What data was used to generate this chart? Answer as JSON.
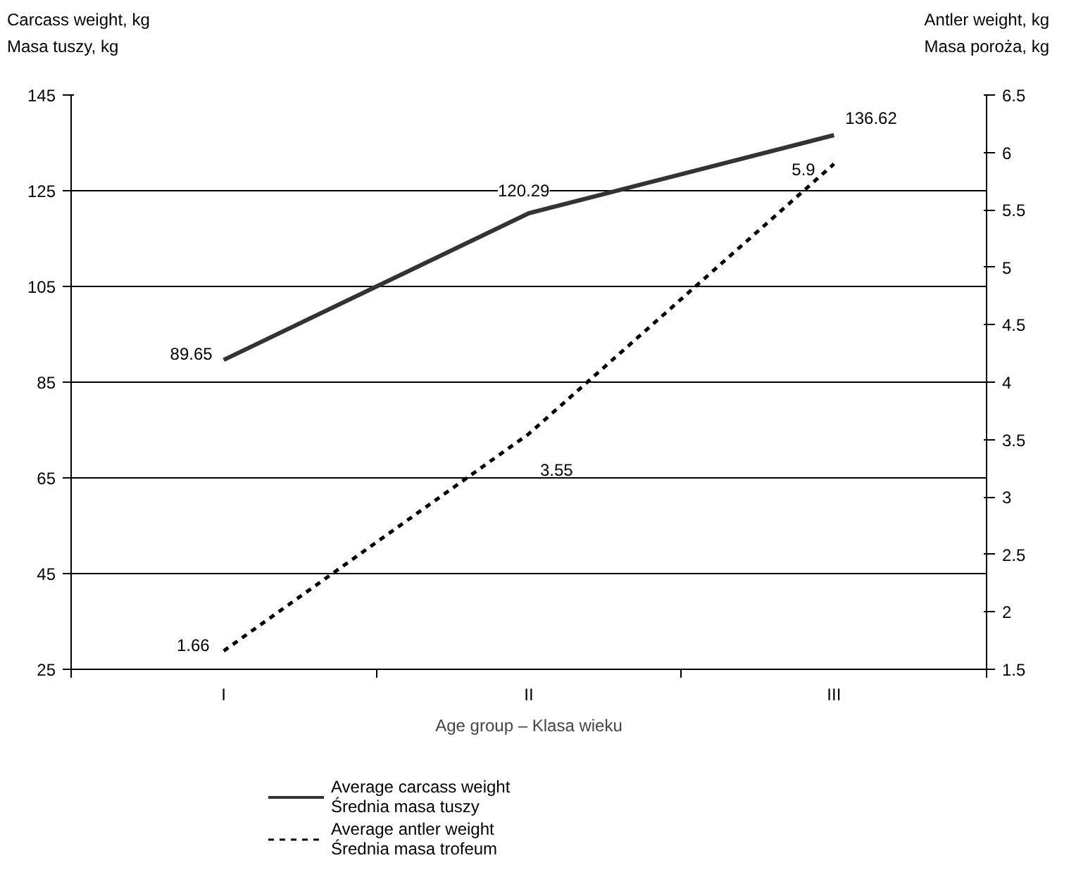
{
  "chart_data": {
    "type": "line",
    "categories": [
      "I",
      "II",
      "III"
    ],
    "xlabel": "Age group – Klasa wieku",
    "ylabel": "Carcass weight, kg\nMasa tuszy, kg",
    "y2label": "Antler weight, kg\nMasa poroża, kg",
    "ylim": [
      25,
      145
    ],
    "yticks": [
      25,
      45,
      65,
      85,
      105,
      125,
      145
    ],
    "y2lim": [
      1.5,
      6.5
    ],
    "y2ticks": [
      1.5,
      2,
      2.5,
      3,
      3.5,
      4,
      4.5,
      5,
      5.5,
      6,
      6.5
    ],
    "series": [
      {
        "name": "Average carcass weight\nŚrednia masa tuszy",
        "color": "#333333",
        "values": [
          89.65,
          120.29,
          136.62
        ],
        "line_style": "solid"
      },
      {
        "name": "Average antler weight\nŚrednia masa trofeum",
        "color": "#000000",
        "values": [
          1.66,
          3.55,
          5.9
        ],
        "line_style": "dashed",
        "axis": "y2"
      }
    ],
    "data_labels": true,
    "grid": "y",
    "legend": "bottom",
    "marker": "none"
  }
}
